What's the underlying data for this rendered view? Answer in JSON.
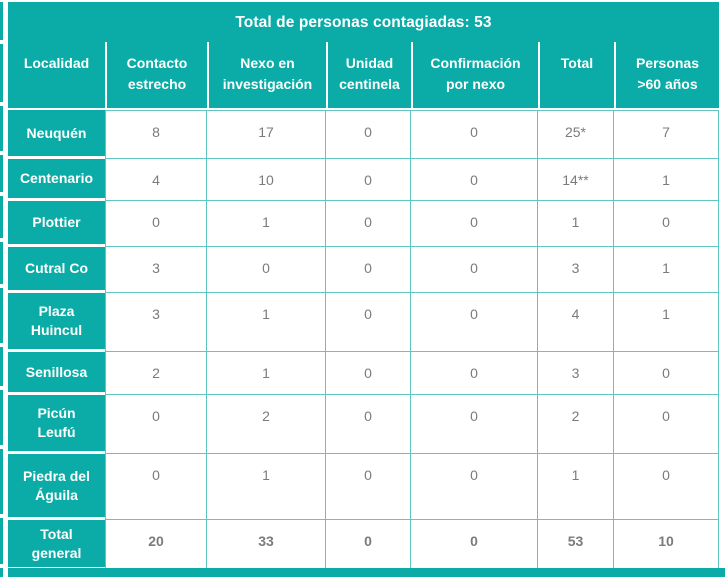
{
  "title": "Total de personas contagiadas: 53",
  "colors": {
    "teal": "#0BACA7",
    "grid_teal": "#5FC6C3",
    "text_gray": "#7B7B7B",
    "header_text": "#FFFFFF"
  },
  "table": {
    "columns": [
      "Localidad",
      "Contacto\nestrecho",
      "Nexo en\ninvestigación",
      "Unidad\ncentinela",
      "Confirmación\npor nexo",
      "Total",
      "Personas\n>60 años"
    ],
    "rows": [
      {
        "localidad": "Neuquén",
        "values": [
          "8",
          "17",
          "0",
          "0",
          "25*",
          "7"
        ]
      },
      {
        "localidad": "Centenario",
        "values": [
          "4",
          "10",
          "0",
          "0",
          "14**",
          "1"
        ]
      },
      {
        "localidad": "Plottier",
        "values": [
          "0",
          "1",
          "0",
          "0",
          "1",
          "0"
        ]
      },
      {
        "localidad": "Cutral Co",
        "values": [
          "3",
          "0",
          "0",
          "0",
          "3",
          "1"
        ]
      },
      {
        "localidad": "Plaza\nHuincul",
        "values": [
          "3",
          "1",
          "0",
          "0",
          "4",
          "1"
        ]
      },
      {
        "localidad": "Senillosa",
        "values": [
          "2",
          "1",
          "0",
          "0",
          "3",
          "0"
        ]
      },
      {
        "localidad": "Picún\nLeufú",
        "values": [
          "0",
          "2",
          "0",
          "0",
          "2",
          "0"
        ]
      },
      {
        "localidad": "Piedra del\nÁguila",
        "values": [
          "0",
          "1",
          "0",
          "0",
          "1",
          "0"
        ]
      },
      {
        "localidad": "Total\ngeneral",
        "values": [
          "20",
          "33",
          "0",
          "0",
          "53",
          "10"
        ],
        "is_total": true
      }
    ]
  }
}
